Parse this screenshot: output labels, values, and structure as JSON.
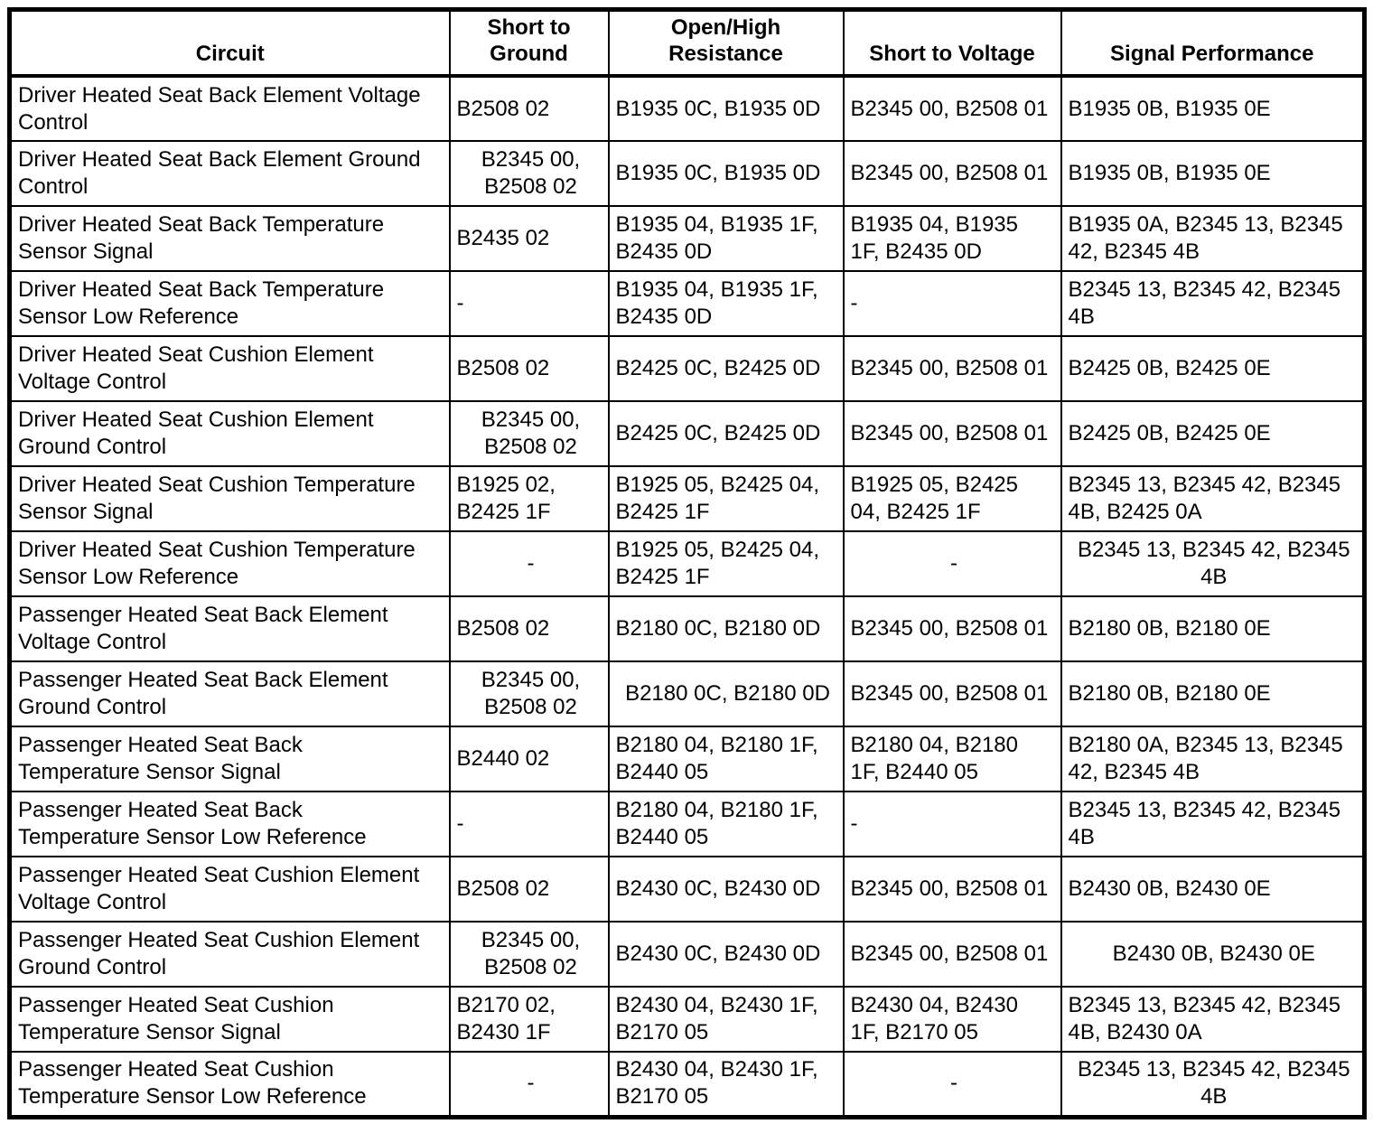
{
  "colors": {
    "background": "#ffffff",
    "border": "#000000",
    "text": "#000000"
  },
  "table": {
    "column_keys": [
      "circuit",
      "short-to-ground",
      "open-high-resistance",
      "short-to-voltage",
      "signal-performance"
    ],
    "header": [
      "Circuit",
      "Short to\nGround",
      "Open/High\nResistance",
      "Short to Voltage",
      "Signal Performance"
    ],
    "rows": [
      {
        "cells": [
          {
            "t": "Driver Heated Seat Back Element Voltage\nControl",
            "a": "l"
          },
          {
            "t": "B2508 02",
            "a": "l"
          },
          {
            "t": "B1935 0C, B1935 0D",
            "a": "l"
          },
          {
            "t": "B2345 00, B2508 01",
            "a": "l"
          },
          {
            "t": "B1935 0B, B1935 0E",
            "a": "l"
          }
        ]
      },
      {
        "cells": [
          {
            "t": "Driver Heated Seat Back Element Ground\nControl",
            "a": "l"
          },
          {
            "t": "B2345 00,\nB2508 02",
            "a": "c"
          },
          {
            "t": "B1935 0C, B1935 0D",
            "a": "l"
          },
          {
            "t": "B2345 00, B2508 01",
            "a": "l"
          },
          {
            "t": "B1935 0B, B1935 0E",
            "a": "l"
          }
        ]
      },
      {
        "cells": [
          {
            "t": "Driver Heated Seat Back Temperature\nSensor Signal",
            "a": "l"
          },
          {
            "t": "B2435 02",
            "a": "l"
          },
          {
            "t": "B1935 04, B1935 1F,\nB2435 0D",
            "a": "l"
          },
          {
            "t": "B1935 04, B1935\n1F, B2435 0D",
            "a": "l"
          },
          {
            "t": "B1935 0A, B2345 13, B2345\n42, B2345 4B",
            "a": "l"
          }
        ]
      },
      {
        "cells": [
          {
            "t": "Driver Heated Seat Back Temperature\nSensor Low Reference",
            "a": "l"
          },
          {
            "t": "-",
            "a": "l"
          },
          {
            "t": "B1935 04, B1935 1F,\nB2435 0D",
            "a": "l"
          },
          {
            "t": "-",
            "a": "l"
          },
          {
            "t": "B2345 13, B2345 42, B2345\n4B",
            "a": "l"
          }
        ]
      },
      {
        "cells": [
          {
            "t": "Driver Heated Seat Cushion Element\nVoltage Control",
            "a": "l"
          },
          {
            "t": "B2508 02",
            "a": "l"
          },
          {
            "t": "B2425 0C, B2425 0D",
            "a": "l"
          },
          {
            "t": "B2345 00, B2508 01",
            "a": "l"
          },
          {
            "t": "B2425 0B, B2425 0E",
            "a": "l"
          }
        ]
      },
      {
        "cells": [
          {
            "t": "Driver Heated Seat Cushion Element\nGround Control",
            "a": "l"
          },
          {
            "t": "B2345 00,\nB2508 02",
            "a": "c"
          },
          {
            "t": "B2425 0C, B2425 0D",
            "a": "l"
          },
          {
            "t": "B2345 00, B2508 01",
            "a": "l"
          },
          {
            "t": "B2425 0B, B2425 0E",
            "a": "l"
          }
        ]
      },
      {
        "cells": [
          {
            "t": "Driver Heated Seat Cushion Temperature\nSensor Signal",
            "a": "l"
          },
          {
            "t": "B1925 02,\nB2425 1F",
            "a": "l"
          },
          {
            "t": "B1925 05, B2425 04,\nB2425 1F",
            "a": "l"
          },
          {
            "t": "B1925 05, B2425\n04, B2425 1F",
            "a": "l"
          },
          {
            "t": "B2345 13, B2345 42, B2345\n4B, B2425 0A",
            "a": "l"
          }
        ]
      },
      {
        "cells": [
          {
            "t": "Driver Heated Seat Cushion Temperature\nSensor Low Reference",
            "a": "l"
          },
          {
            "t": "-",
            "a": "c"
          },
          {
            "t": "B1925 05, B2425 04,\nB2425 1F",
            "a": "l"
          },
          {
            "t": "-",
            "a": "c"
          },
          {
            "t": "B2345 13, B2345 42, B2345\n4B",
            "a": "c"
          }
        ]
      },
      {
        "cells": [
          {
            "t": "Passenger Heated Seat Back Element\nVoltage Control",
            "a": "l"
          },
          {
            "t": "B2508 02",
            "a": "l"
          },
          {
            "t": "B2180 0C, B2180 0D",
            "a": "l"
          },
          {
            "t": "B2345 00, B2508 01",
            "a": "l"
          },
          {
            "t": "B2180 0B, B2180 0E",
            "a": "l"
          }
        ]
      },
      {
        "cells": [
          {
            "t": "Passenger Heated Seat Back Element\nGround Control",
            "a": "l"
          },
          {
            "t": "B2345 00,\nB2508 02",
            "a": "c"
          },
          {
            "t": "B2180 0C, B2180 0D",
            "a": "c"
          },
          {
            "t": "B2345 00, B2508 01",
            "a": "l"
          },
          {
            "t": "B2180 0B, B2180 0E",
            "a": "l"
          }
        ]
      },
      {
        "cells": [
          {
            "t": "Passenger Heated Seat Back\nTemperature Sensor Signal",
            "a": "l"
          },
          {
            "t": "B2440 02",
            "a": "l"
          },
          {
            "t": "B2180 04, B2180 1F,\nB2440 05",
            "a": "l"
          },
          {
            "t": "B2180 04, B2180\n1F, B2440 05",
            "a": "l"
          },
          {
            "t": "B2180 0A, B2345 13, B2345\n42, B2345 4B",
            "a": "l"
          }
        ]
      },
      {
        "cells": [
          {
            "t": "Passenger Heated Seat Back\nTemperature Sensor Low Reference",
            "a": "l"
          },
          {
            "t": "-",
            "a": "l"
          },
          {
            "t": "B2180 04, B2180 1F,\nB2440 05",
            "a": "l"
          },
          {
            "t": "-",
            "a": "l"
          },
          {
            "t": "B2345 13, B2345 42, B2345\n4B",
            "a": "l"
          }
        ]
      },
      {
        "cells": [
          {
            "t": "Passenger Heated Seat Cushion Element\nVoltage Control",
            "a": "l"
          },
          {
            "t": "B2508 02",
            "a": "l"
          },
          {
            "t": "B2430 0C, B2430 0D",
            "a": "l"
          },
          {
            "t": "B2345 00, B2508 01",
            "a": "l"
          },
          {
            "t": "B2430 0B, B2430 0E",
            "a": "l"
          }
        ]
      },
      {
        "cells": [
          {
            "t": "Passenger Heated Seat Cushion Element\nGround Control",
            "a": "l"
          },
          {
            "t": "B2345 00,\nB2508 02",
            "a": "c"
          },
          {
            "t": "B2430 0C, B2430 0D",
            "a": "l"
          },
          {
            "t": "B2345 00, B2508 01",
            "a": "l"
          },
          {
            "t": "B2430 0B, B2430 0E",
            "a": "c"
          }
        ]
      },
      {
        "cells": [
          {
            "t": "Passenger Heated Seat Cushion\nTemperature Sensor Signal",
            "a": "l"
          },
          {
            "t": "B2170 02,\nB2430 1F",
            "a": "l"
          },
          {
            "t": "B2430 04, B2430 1F,\nB2170 05",
            "a": "l"
          },
          {
            "t": "B2430 04, B2430\n1F, B2170 05",
            "a": "l"
          },
          {
            "t": "B2345 13, B2345 42, B2345\n4B, B2430 0A",
            "a": "l"
          }
        ]
      },
      {
        "cells": [
          {
            "t": "Passenger Heated Seat Cushion\nTemperature Sensor Low Reference",
            "a": "l"
          },
          {
            "t": "-",
            "a": "c"
          },
          {
            "t": "B2430 04, B2430 1F,\nB2170 05",
            "a": "l"
          },
          {
            "t": "-",
            "a": "c"
          },
          {
            "t": "B2345 13, B2345 42, B2345\n4B",
            "a": "c"
          }
        ]
      }
    ]
  }
}
